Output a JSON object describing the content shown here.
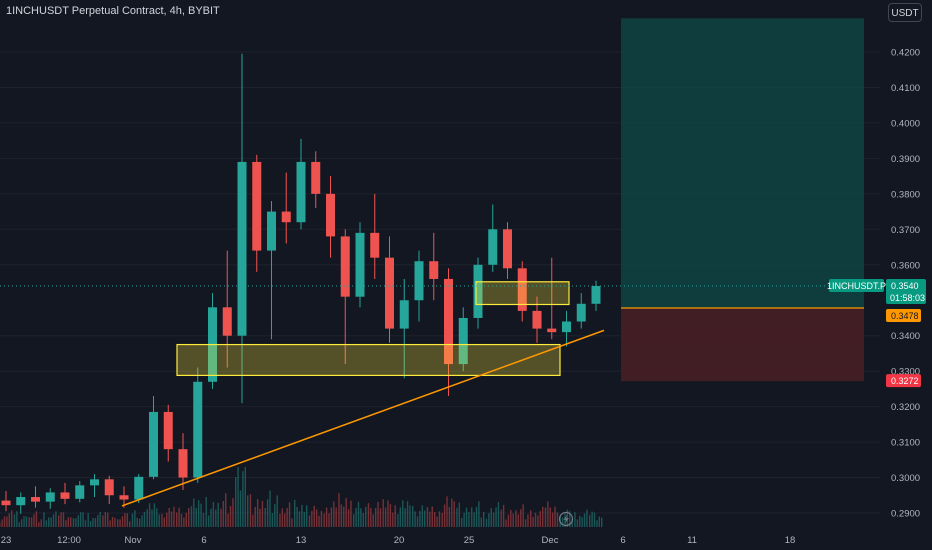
{
  "header": {
    "title": "1INCHUSDT Perpetual Contract, 4h, BYBIT",
    "currency_button": "USDT"
  },
  "colors": {
    "background": "#131722",
    "up": "#26a69a",
    "down": "#ef5350",
    "trendline": "#ff9800",
    "zone_border": "#ffeb3b",
    "target_fill": "#0f4a45",
    "stop_fill": "#4a1f24",
    "entry_line": "#ff9800",
    "last_price_tag": "#089981",
    "stop_tag": "#f23645"
  },
  "chart_data": {
    "type": "candlestick",
    "symbol": "1INCHUSDT",
    "timeframe": "4h",
    "exchange": "BYBIT",
    "y_ticks": [
      "0.4200",
      "0.4100",
      "0.4000",
      "0.3900",
      "0.3800",
      "0.3700",
      "0.3600",
      "0.3400",
      "0.3300",
      "0.3200",
      "0.3100",
      "0.3000",
      "0.2900"
    ],
    "ylim": [
      0.2875,
      0.4245
    ],
    "x_ticks": [
      "23",
      "12:00",
      "Nov",
      "6",
      "13",
      "20",
      "25",
      "Dec",
      "6",
      "11",
      "18"
    ],
    "last_price": {
      "symbol_label": "1INCHUSDT.P",
      "value": "0.3540",
      "countdown": "01:58:03"
    },
    "entry_price": {
      "value": "0.3478"
    },
    "stop_price": {
      "value": "0.3272"
    },
    "target_price": 0.4295,
    "zones": [
      {
        "name": "support-zone",
        "low": 0.3288,
        "high": 0.3375
      },
      {
        "name": "resistance-zone",
        "low": 0.3488,
        "high": 0.3552
      }
    ],
    "trendline": {
      "from_date": "Oct 31",
      "from_price": 0.292,
      "to_date": "Dec 3",
      "to_price": 0.3415
    },
    "candles": [
      {
        "date": "Oct 23",
        "o": 0.2935,
        "h": 0.2962,
        "l": 0.2905,
        "c": 0.2922
      },
      {
        "date": "Oct 24",
        "o": 0.2922,
        "h": 0.2958,
        "l": 0.2898,
        "c": 0.2945
      },
      {
        "date": "Oct 25",
        "o": 0.2945,
        "h": 0.2975,
        "l": 0.2915,
        "c": 0.2932
      },
      {
        "date": "Oct 26",
        "o": 0.2932,
        "h": 0.297,
        "l": 0.2912,
        "c": 0.2958
      },
      {
        "date": "Oct 27",
        "o": 0.2958,
        "h": 0.2985,
        "l": 0.2925,
        "c": 0.294
      },
      {
        "date": "Oct 28",
        "o": 0.294,
        "h": 0.299,
        "l": 0.293,
        "c": 0.2978
      },
      {
        "date": "Oct 29",
        "o": 0.2978,
        "h": 0.301,
        "l": 0.2945,
        "c": 0.2995
      },
      {
        "date": "Oct 30",
        "o": 0.2995,
        "h": 0.3005,
        "l": 0.2925,
        "c": 0.295
      },
      {
        "date": "Oct 31",
        "o": 0.295,
        "h": 0.2975,
        "l": 0.2915,
        "c": 0.2938
      },
      {
        "date": "Nov 1",
        "o": 0.2938,
        "h": 0.301,
        "l": 0.2928,
        "c": 0.3002
      },
      {
        "date": "Nov 2",
        "o": 0.3002,
        "h": 0.323,
        "l": 0.2995,
        "c": 0.3185
      },
      {
        "date": "Nov 3",
        "o": 0.3185,
        "h": 0.3205,
        "l": 0.3045,
        "c": 0.308
      },
      {
        "date": "Nov 4",
        "o": 0.308,
        "h": 0.3125,
        "l": 0.2965,
        "c": 0.3
      },
      {
        "date": "Nov 5",
        "o": 0.3,
        "h": 0.331,
        "l": 0.2985,
        "c": 0.327
      },
      {
        "date": "Nov 6",
        "o": 0.327,
        "h": 0.352,
        "l": 0.325,
        "c": 0.348
      },
      {
        "date": "Nov 7",
        "o": 0.348,
        "h": 0.364,
        "l": 0.331,
        "c": 0.34
      },
      {
        "date": "Nov 8",
        "o": 0.34,
        "h": 0.4195,
        "l": 0.321,
        "c": 0.389
      },
      {
        "date": "Nov 9",
        "o": 0.389,
        "h": 0.391,
        "l": 0.358,
        "c": 0.364
      },
      {
        "date": "Nov 10",
        "o": 0.364,
        "h": 0.378,
        "l": 0.339,
        "c": 0.375
      },
      {
        "date": "Nov 11",
        "o": 0.375,
        "h": 0.386,
        "l": 0.366,
        "c": 0.372
      },
      {
        "date": "Nov 12",
        "o": 0.372,
        "h": 0.3955,
        "l": 0.37,
        "c": 0.389
      },
      {
        "date": "Nov 13",
        "o": 0.389,
        "h": 0.392,
        "l": 0.376,
        "c": 0.38
      },
      {
        "date": "Nov 14",
        "o": 0.38,
        "h": 0.385,
        "l": 0.362,
        "c": 0.368
      },
      {
        "date": "Nov 15",
        "o": 0.368,
        "h": 0.37,
        "l": 0.332,
        "c": 0.351
      },
      {
        "date": "Nov 16",
        "o": 0.351,
        "h": 0.372,
        "l": 0.348,
        "c": 0.369
      },
      {
        "date": "Nov 17",
        "o": 0.369,
        "h": 0.38,
        "l": 0.356,
        "c": 0.362
      },
      {
        "date": "Nov 18",
        "o": 0.362,
        "h": 0.368,
        "l": 0.338,
        "c": 0.342
      },
      {
        "date": "Nov 19",
        "o": 0.342,
        "h": 0.356,
        "l": 0.328,
        "c": 0.35
      },
      {
        "date": "Nov 20",
        "o": 0.35,
        "h": 0.364,
        "l": 0.344,
        "c": 0.361
      },
      {
        "date": "Nov 21",
        "o": 0.361,
        "h": 0.369,
        "l": 0.35,
        "c": 0.356
      },
      {
        "date": "Nov 22",
        "o": 0.356,
        "h": 0.359,
        "l": 0.323,
        "c": 0.332
      },
      {
        "date": "Nov 23",
        "o": 0.332,
        "h": 0.348,
        "l": 0.33,
        "c": 0.345
      },
      {
        "date": "Nov 24",
        "o": 0.345,
        "h": 0.362,
        "l": 0.342,
        "c": 0.36
      },
      {
        "date": "Nov 25",
        "o": 0.36,
        "h": 0.377,
        "l": 0.358,
        "c": 0.37
      },
      {
        "date": "Nov 26",
        "o": 0.37,
        "h": 0.372,
        "l": 0.356,
        "c": 0.359
      },
      {
        "date": "Nov 27",
        "o": 0.359,
        "h": 0.361,
        "l": 0.344,
        "c": 0.347
      },
      {
        "date": "Nov 28",
        "o": 0.347,
        "h": 0.351,
        "l": 0.338,
        "c": 0.342
      },
      {
        "date": "Nov 29",
        "o": 0.342,
        "h": 0.362,
        "l": 0.339,
        "c": 0.341
      },
      {
        "date": "Nov 30",
        "o": 0.341,
        "h": 0.347,
        "l": 0.337,
        "c": 0.344
      },
      {
        "date": "Dec 1",
        "o": 0.344,
        "h": 0.352,
        "l": 0.342,
        "c": 0.349
      },
      {
        "date": "Dec 2",
        "o": 0.349,
        "h": 0.3555,
        "l": 0.347,
        "c": 0.354
      }
    ]
  }
}
